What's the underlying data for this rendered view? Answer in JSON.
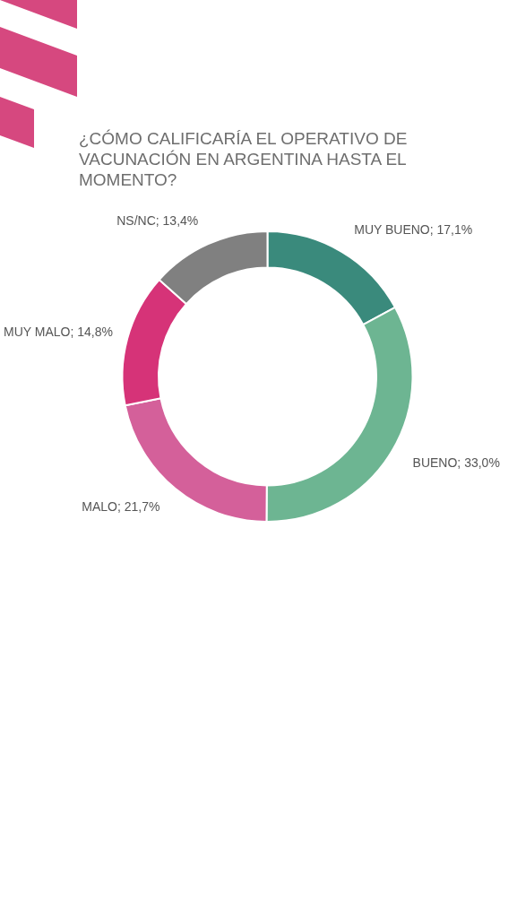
{
  "chart_data": {
    "type": "donut",
    "title": "¿CÓMO CALIFICARÍA EL OPERATIVO DE VACUNACIÓN EN ARGENTINA HASTA EL MOMENTO?",
    "categories": [
      "MUY BUENO",
      "BUENO",
      "MALO",
      "MUY MALO",
      "NS/NC"
    ],
    "values": [
      17.1,
      33.0,
      21.7,
      14.8,
      13.4
    ],
    "value_labels": [
      "17,1%",
      "33,0%",
      "21,7%",
      "14,8%",
      "13,4%"
    ],
    "colors": [
      "#3a8a7c",
      "#6db592",
      "#d4609a",
      "#d63378",
      "#808080"
    ],
    "legend": false
  }
}
